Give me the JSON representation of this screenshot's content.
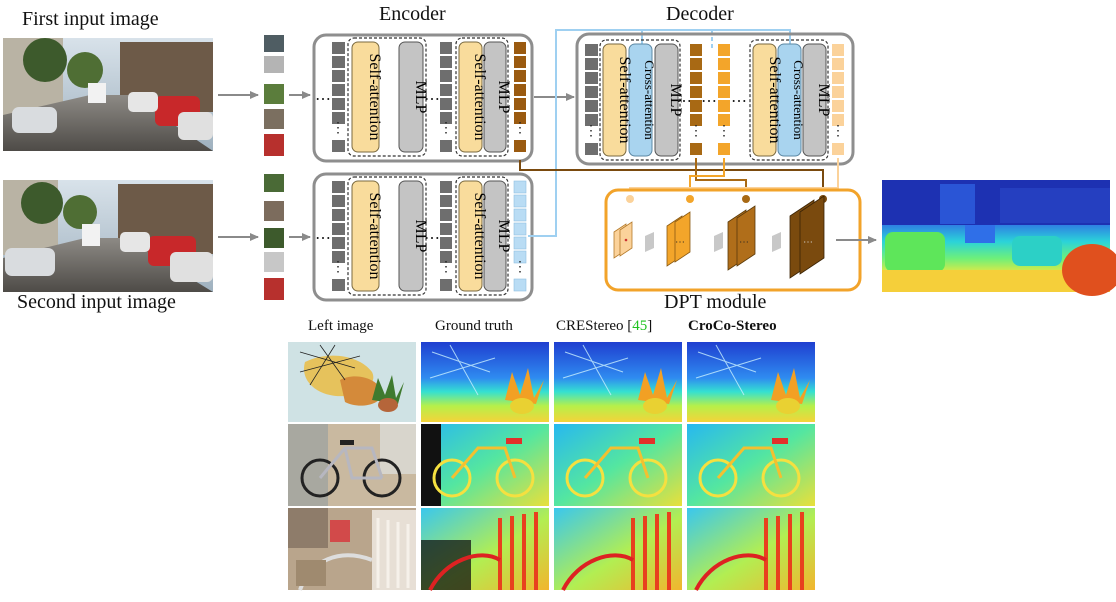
{
  "labels": {
    "first_input": "First input image",
    "second_input": "Second input image",
    "encoder": "Encoder",
    "decoder": "Decoder",
    "dpt_module": "DPT module"
  },
  "blocks": {
    "self_attention": "Self-attention",
    "mlp": "MLP",
    "cross_attention": "Cross-attention"
  },
  "results": {
    "col_left": "Left image",
    "col_gt": "Ground truth",
    "col_crestereo": "CREStereo",
    "citation_open": "[",
    "citation_num": "45",
    "citation_close": "]",
    "col_croco": "CroCo-Stereo"
  },
  "colors": {
    "self_attention": "#f9dc9c",
    "mlp": "#c4c4c4",
    "cross_attention": "#a9d4ef",
    "token_gray": "#6e6e6e",
    "token_brown": "#9a5a10",
    "token_orange": "#f3a52a",
    "token_light_orange": "#fbd29a",
    "token_light_blue": "#b9dcf4",
    "dpt_border": "#f2a32a",
    "citation": "#1fc21f"
  }
}
